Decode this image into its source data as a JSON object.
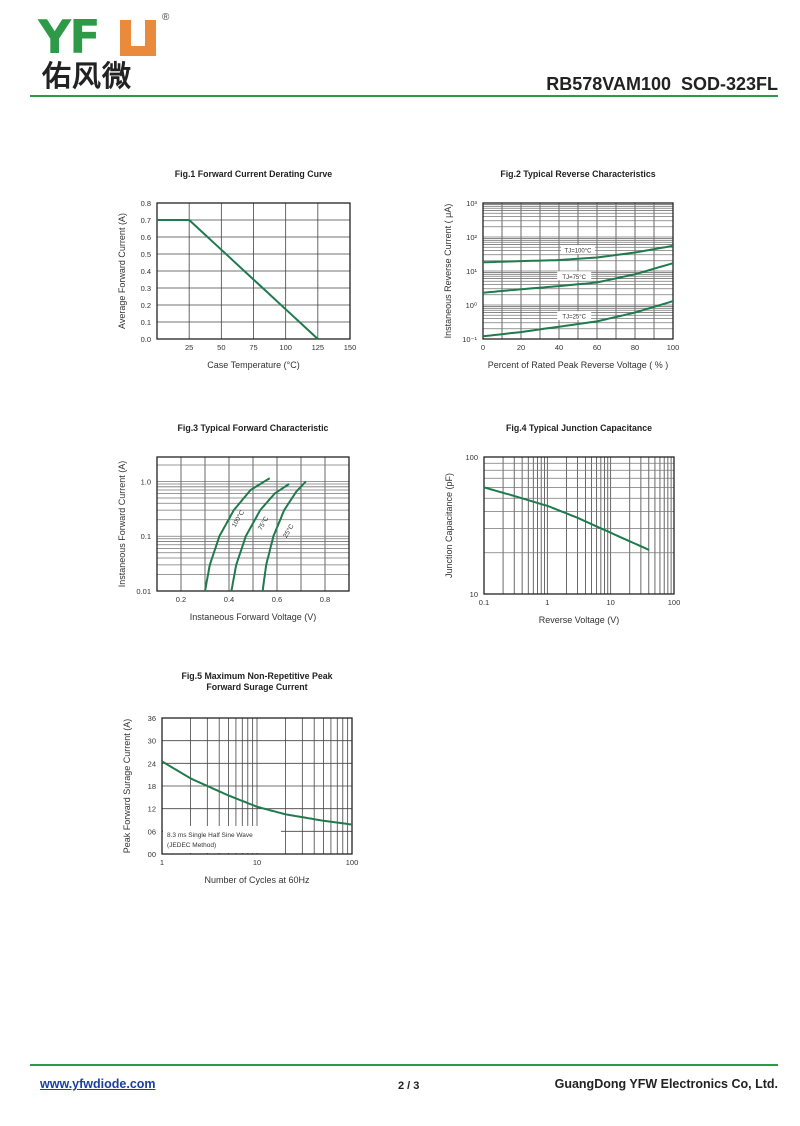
{
  "header": {
    "logo_text": "YFW",
    "logo_latin": "YF",
    "logo_registered": "®",
    "logo_chinese": "佑风微",
    "title": "RB578VAM100  SOD-323FL"
  },
  "footer": {
    "website": "www.yfwdiode.com",
    "page": "2 / 3",
    "company": "GuangDong YFW Electronics Co, Ltd."
  },
  "colors": {
    "brand_green": "#2e9a48",
    "brand_orange": "#e98a3d",
    "curve": "#1f7a4d"
  },
  "chart_data": [
    {
      "type": "line",
      "title_lines": [
        "Fig.1  Forward Current Derating Curve"
      ],
      "xlabel": "Case  Temperature (°C)",
      "ylabel": "Average Forward Current (A)",
      "xscale": "linear",
      "yscale": "linear",
      "xlim": [
        0,
        150
      ],
      "ylim": [
        0,
        0.8
      ],
      "xticks": [
        25,
        50,
        75,
        100,
        125,
        150
      ],
      "xtick_labels": [
        "25",
        "50",
        "75",
        "100",
        "125",
        "150"
      ],
      "yticks": [
        0,
        0.1,
        0.2,
        0.3,
        0.4,
        0.5,
        0.6,
        0.7,
        0.8
      ],
      "ytick_labels": [
        "0.0",
        "0.1",
        "0.2",
        "0.3",
        "0.4",
        "0.5",
        "0.6",
        "0.7",
        "0.8"
      ],
      "xgrid_step": 25,
      "ygrid_step": 0.1,
      "grid": true,
      "series": [
        {
          "name": "derating",
          "x": [
            0,
            25,
            125
          ],
          "y": [
            0.7,
            0.7,
            0
          ]
        }
      ]
    },
    {
      "type": "line",
      "title_lines": [
        "Fig.2  Typical Reverse Characteristics"
      ],
      "xlabel": "Percent of Rated Peak Reverse Voltage ( % )",
      "ylabel": "Instaneous Reverse Current ( μA)",
      "xscale": "linear",
      "yscale": "log",
      "xlim": [
        0,
        100
      ],
      "ylim": [
        0.1,
        1000
      ],
      "xticks": [
        0,
        20,
        40,
        60,
        80,
        100
      ],
      "xtick_labels": [
        "0",
        "20",
        "40",
        "60",
        "80",
        "100"
      ],
      "yticks": [
        0.1,
        1,
        10,
        100,
        1000
      ],
      "ytick_labels": [
        "10⁻¹",
        "10⁰",
        "10¹",
        "10²",
        "10³"
      ],
      "xgrid_step": 10,
      "grid": true,
      "series": [
        {
          "name": "TJ=100°C",
          "x": [
            0,
            20,
            40,
            60,
            80,
            100
          ],
          "y": [
            18,
            19.5,
            21,
            25,
            35,
            55
          ],
          "label": "TJ=100°C",
          "label_at": [
            50,
            41
          ]
        },
        {
          "name": "TJ=75°C",
          "x": [
            0,
            20,
            40,
            60,
            80,
            100
          ],
          "y": [
            2.3,
            2.9,
            3.6,
            4.6,
            8,
            17
          ],
          "label": "TJ=75°C",
          "label_at": [
            48,
            7
          ]
        },
        {
          "name": "TJ=25°C",
          "x": [
            0,
            20,
            40,
            60,
            80,
            100
          ],
          "y": [
            0.12,
            0.16,
            0.23,
            0.33,
            0.6,
            1.3
          ],
          "label": "TJ=25°C",
          "label_at": [
            48,
            0.47
          ]
        }
      ]
    },
    {
      "type": "line",
      "title_lines": [
        "Fig.3  Typical Forward Characteristic"
      ],
      "xlabel": "Instaneous Forward Voltage (V)",
      "ylabel": "Instaneous Forward Current  (A)",
      "xscale": "linear",
      "yscale": "log",
      "xlim": [
        0.1,
        0.9
      ],
      "ylim": [
        0.01,
        2.8
      ],
      "xticks": [
        0.2,
        0.4,
        0.6,
        0.8
      ],
      "xtick_labels": [
        "0.2",
        "0.4",
        "0.6",
        "0.8"
      ],
      "yticks": [
        0.01,
        0.1,
        1.0
      ],
      "ytick_labels": [
        "0.01",
        "0.1",
        "1.0"
      ],
      "xgrid_step": 0.1,
      "grid": true,
      "series": [
        {
          "name": "100°C",
          "x": [
            0.3,
            0.32,
            0.36,
            0.42,
            0.49,
            0.57
          ],
          "y": [
            0.01,
            0.03,
            0.1,
            0.3,
            0.7,
            1.15
          ],
          "label": "100°C",
          "label_at": [
            0.445,
            0.2
          ]
        },
        {
          "name": "75°C",
          "x": [
            0.41,
            0.43,
            0.47,
            0.53,
            0.59,
            0.65
          ],
          "y": [
            0.01,
            0.03,
            0.1,
            0.3,
            0.6,
            0.9
          ],
          "label": "75°C",
          "label_at": [
            0.55,
            0.165
          ]
        },
        {
          "name": "25°C",
          "x": [
            0.54,
            0.555,
            0.585,
            0.63,
            0.68,
            0.72
          ],
          "y": [
            0.01,
            0.03,
            0.1,
            0.3,
            0.65,
            1.0
          ],
          "label": "25°C",
          "label_at": [
            0.655,
            0.12
          ]
        }
      ]
    },
    {
      "type": "line",
      "title_lines": [
        "Fig.4  Typical Junction Capacitance"
      ],
      "xlabel": "Reverse  Voltage (V)",
      "ylabel": "Junction Capacitance (pF)",
      "xscale": "log",
      "yscale": "log",
      "xlim": [
        0.1,
        100
      ],
      "ylim": [
        10,
        100
      ],
      "xticks": [
        0.1,
        1,
        10,
        100
      ],
      "xtick_labels": [
        "0.1",
        "1",
        "10",
        "100"
      ],
      "yticks": [
        10,
        100
      ],
      "ytick_labels": [
        "10",
        "100"
      ],
      "grid": true,
      "series": [
        {
          "name": "Cj",
          "x": [
            0.1,
            0.3,
            1,
            3,
            10,
            40
          ],
          "y": [
            60,
            52,
            44,
            36,
            28,
            21
          ]
        }
      ]
    },
    {
      "type": "line",
      "title_lines": [
        "Fig.5  Maximum Non-Repetitive Peak",
        "Forward Surage Current"
      ],
      "xlabel": "Number of Cycles at 60Hz",
      "ylabel": "Peak Forward Surage Current (A)",
      "xscale": "log",
      "yscale": "linear",
      "xlim": [
        1,
        100
      ],
      "ylim": [
        0,
        36
      ],
      "xticks": [
        1,
        10,
        100
      ],
      "xtick_labels": [
        "1",
        "10",
        "100"
      ],
      "yticks": [
        0,
        6,
        12,
        18,
        24,
        30,
        36
      ],
      "ytick_labels": [
        "00",
        "06",
        "12",
        "18",
        "24",
        "30",
        "36"
      ],
      "ygrid_step": 6,
      "grid": true,
      "annotation_lines": [
        "8.3 ms Single Half Sine Wave",
        "(JEDEC Method)"
      ],
      "series": [
        {
          "name": "IFSM",
          "x": [
            1,
            2,
            3,
            5,
            10,
            20,
            50,
            100
          ],
          "y": [
            24.5,
            20,
            18,
            15.5,
            12.5,
            10.5,
            8.8,
            7.8
          ]
        }
      ]
    }
  ]
}
